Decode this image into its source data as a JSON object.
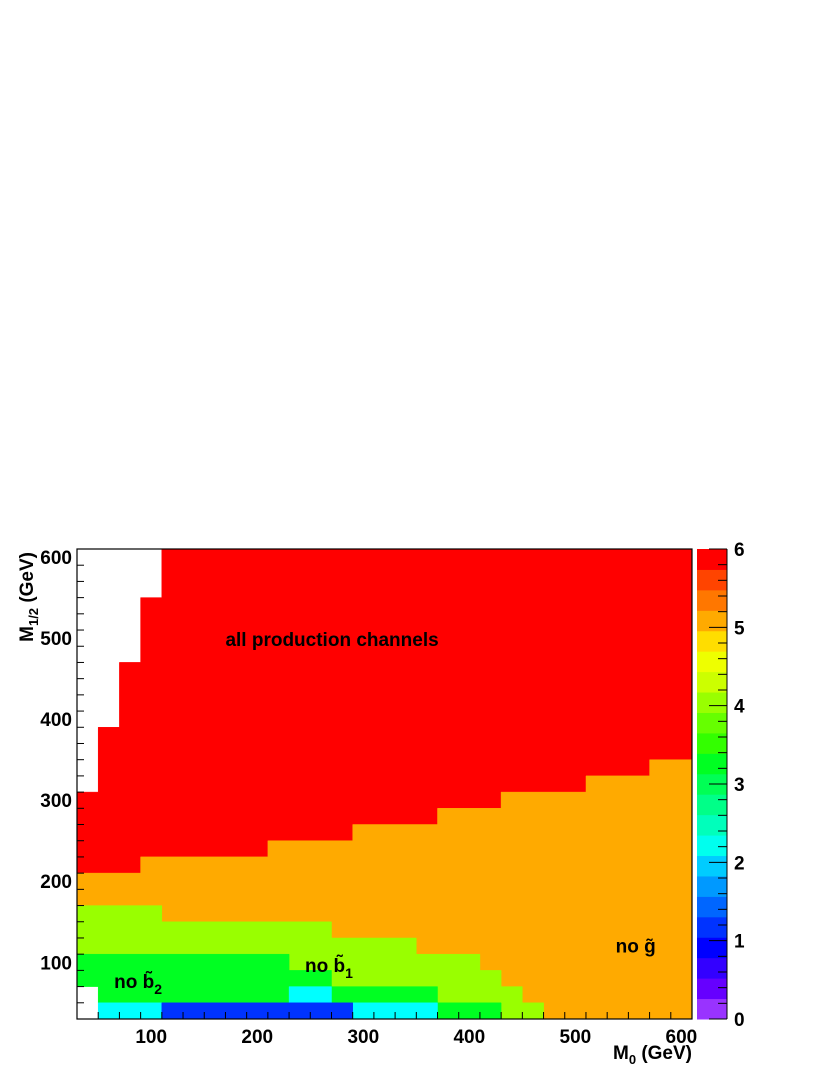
{
  "chart_data": {
    "type": "heatmap",
    "title": "",
    "xlabel": {
      "main": "M",
      "sub": "0",
      "unit": " (GeV)"
    },
    "ylabel": {
      "main": "M",
      "sub": "1/2",
      "unit": " (GeV)"
    },
    "xlim": [
      30,
      610
    ],
    "ylim": [
      30,
      610
    ],
    "zlim": [
      0,
      6
    ],
    "x_ticks": [
      "100",
      "200",
      "300",
      "400",
      "500",
      "600"
    ],
    "y_ticks": [
      "100",
      "200",
      "300",
      "400",
      "500",
      "600"
    ],
    "z_ticks": [
      "0",
      "1",
      "2",
      "3",
      "4",
      "5",
      "6"
    ],
    "palette": [
      "#9933ff",
      "#6600ff",
      "#3300ff",
      "#0000ff",
      "#0033ff",
      "#0066ff",
      "#0099ff",
      "#00ccff",
      "#00ffee",
      "#00ffbb",
      "#00ff88",
      "#00ff55",
      "#00ff22",
      "#33ff00",
      "#66ff00",
      "#99ff00",
      "#ccff00",
      "#eeff00",
      "#ffdd00",
      "#ffaa00",
      "#ff7700",
      "#ff4400",
      "#ff0000"
    ],
    "region_colors": {
      "6": "#ff0000",
      "5": "#ffaa00",
      "4": "#99ff00",
      "3": "#00ff22",
      "2": "#00ffff",
      "1": "#0033ff"
    },
    "regions": [
      {
        "level": 6,
        "polygon": [
          [
            30,
            310
          ],
          [
            50,
            310
          ],
          [
            50,
            390
          ],
          [
            70,
            390
          ],
          [
            70,
            470
          ],
          [
            90,
            470
          ],
          [
            90,
            550
          ],
          [
            110,
            550
          ],
          [
            110,
            610
          ],
          [
            610,
            610
          ],
          [
            610,
            350
          ],
          [
            570,
            350
          ],
          [
            570,
            330
          ],
          [
            510,
            330
          ],
          [
            510,
            310
          ],
          [
            430,
            310
          ],
          [
            430,
            290
          ],
          [
            370,
            290
          ],
          [
            370,
            270
          ],
          [
            290,
            270
          ],
          [
            290,
            250
          ],
          [
            210,
            250
          ],
          [
            210,
            230
          ],
          [
            90,
            230
          ],
          [
            90,
            210
          ],
          [
            30,
            210
          ]
        ]
      },
      {
        "level": 5,
        "polygon": [
          [
            30,
            210
          ],
          [
            90,
            210
          ],
          [
            90,
            230
          ],
          [
            210,
            230
          ],
          [
            210,
            250
          ],
          [
            290,
            250
          ],
          [
            290,
            270
          ],
          [
            370,
            270
          ],
          [
            370,
            290
          ],
          [
            430,
            290
          ],
          [
            430,
            310
          ],
          [
            510,
            310
          ],
          [
            510,
            330
          ],
          [
            570,
            330
          ],
          [
            570,
            350
          ],
          [
            610,
            350
          ],
          [
            610,
            30
          ],
          [
            470,
            30
          ],
          [
            470,
            50
          ],
          [
            450,
            50
          ],
          [
            450,
            70
          ],
          [
            430,
            70
          ],
          [
            430,
            90
          ],
          [
            410,
            90
          ],
          [
            410,
            110
          ],
          [
            350,
            110
          ],
          [
            350,
            130
          ],
          [
            270,
            130
          ],
          [
            270,
            150
          ],
          [
            110,
            150
          ],
          [
            110,
            170
          ],
          [
            30,
            170
          ]
        ]
      },
      {
        "level": 4,
        "polygon": [
          [
            30,
            170
          ],
          [
            110,
            170
          ],
          [
            110,
            150
          ],
          [
            270,
            150
          ],
          [
            270,
            130
          ],
          [
            350,
            130
          ],
          [
            350,
            110
          ],
          [
            410,
            110
          ],
          [
            410,
            90
          ],
          [
            430,
            90
          ],
          [
            430,
            70
          ],
          [
            450,
            70
          ],
          [
            450,
            50
          ],
          [
            470,
            50
          ],
          [
            470,
            30
          ],
          [
            430,
            30
          ],
          [
            430,
            50
          ],
          [
            370,
            50
          ],
          [
            370,
            70
          ],
          [
            270,
            70
          ],
          [
            270,
            90
          ],
          [
            230,
            90
          ],
          [
            230,
            110
          ],
          [
            170,
            110
          ],
          [
            170,
            90
          ],
          [
            230,
            90
          ],
          [
            230,
            70
          ],
          [
            50,
            70
          ],
          [
            50,
            110
          ],
          [
            30,
            110
          ]
        ]
      },
      {
        "level": 4,
        "polygon": [
          [
            170,
            90
          ],
          [
            230,
            90
          ],
          [
            230,
            110
          ],
          [
            170,
            110
          ]
        ]
      },
      {
        "level": 3,
        "polygon": [
          [
            30,
            70
          ],
          [
            50,
            70
          ],
          [
            50,
            50
          ],
          [
            230,
            50
          ],
          [
            230,
            70
          ],
          [
            270,
            70
          ],
          [
            270,
            50
          ],
          [
            370,
            50
          ],
          [
            370,
            30
          ],
          [
            430,
            30
          ],
          [
            430,
            50
          ],
          [
            370,
            50
          ],
          [
            370,
            70
          ],
          [
            270,
            70
          ],
          [
            270,
            90
          ],
          [
            230,
            90
          ],
          [
            230,
            110
          ],
          [
            30,
            110
          ]
        ]
      },
      {
        "level": 2,
        "polygon": [
          [
            50,
            30
          ],
          [
            110,
            30
          ],
          [
            110,
            50
          ],
          [
            50,
            50
          ]
        ]
      },
      {
        "level": 2,
        "polygon": [
          [
            230,
            50
          ],
          [
            270,
            50
          ],
          [
            270,
            70
          ],
          [
            230,
            70
          ]
        ]
      },
      {
        "level": 2,
        "polygon": [
          [
            290,
            30
          ],
          [
            370,
            30
          ],
          [
            370,
            50
          ],
          [
            290,
            50
          ]
        ]
      },
      {
        "level": 1,
        "polygon": [
          [
            110,
            30
          ],
          [
            290,
            30
          ],
          [
            290,
            50
          ],
          [
            110,
            50
          ]
        ]
      }
    ],
    "annotations": [
      {
        "text": "all production channels",
        "x": 170,
        "y": 490
      },
      {
        "text": "no b̃",
        "sub": "2",
        "x": 65,
        "y": 68
      },
      {
        "text": "no b̃",
        "sub": "1",
        "x": 245,
        "y": 88
      },
      {
        "text": "no g̃",
        "x": 538,
        "y": 112
      }
    ]
  }
}
